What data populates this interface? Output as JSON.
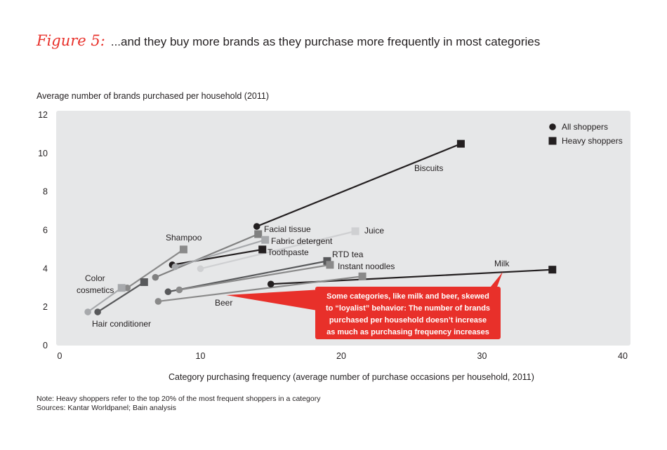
{
  "figure": {
    "label": "Figure 5:",
    "title": "...and they buy more brands as they purchase more frequently in most categories"
  },
  "notes": {
    "note": "Note: Heavy shoppers refer to the top 20% of the most frequent shoppers in a category",
    "sources": "Sources: Kantar Worldpanel; Bain analysis"
  },
  "chart_data": {
    "type": "scatter",
    "ylabel": "Average number of brands purchased per household (2011)",
    "xlabel": "Category purchasing frequency (average number of purchase occasions per household, 2011)",
    "xlim": [
      0,
      40
    ],
    "ylim": [
      0,
      12
    ],
    "x_ticks": [
      0,
      10,
      20,
      30,
      40
    ],
    "y_ticks": [
      0,
      2,
      4,
      6,
      8,
      10,
      12
    ],
    "grid": false,
    "legend": {
      "placement": "top-right",
      "entries": [
        {
          "label": "All shoppers",
          "marker": "circle"
        },
        {
          "label": "Heavy shoppers",
          "marker": "square"
        }
      ]
    },
    "categories": [
      {
        "name": "Biscuits",
        "all": [
          14.0,
          6.2
        ],
        "heavy": [
          28.5,
          10.5
        ],
        "color": "#231f20"
      },
      {
        "name": "Milk",
        "all": [
          15.0,
          3.2
        ],
        "heavy": [
          35.0,
          3.95
        ],
        "color": "#231f20"
      },
      {
        "name": "Toothpaste",
        "all": [
          8.0,
          4.2
        ],
        "heavy": [
          14.4,
          5.0
        ],
        "color": "#231f20"
      },
      {
        "name": "RTD tea",
        "all": [
          7.7,
          2.8
        ],
        "heavy": [
          19.0,
          4.4
        ],
        "color": "#58595b"
      },
      {
        "name": "Facial tissue",
        "all": [
          6.8,
          3.55
        ],
        "heavy": [
          14.1,
          5.8
        ],
        "color": "#808080"
      },
      {
        "name": "Instant noodles",
        "all": [
          8.5,
          2.9
        ],
        "heavy": [
          19.2,
          4.2
        ],
        "color": "#8a8a8a"
      },
      {
        "name": "Beer",
        "all": [
          7.0,
          2.3
        ],
        "heavy": [
          21.5,
          3.6
        ],
        "color": "#8a8a8a"
      },
      {
        "name": "Hair conditioner",
        "all": [
          2.7,
          1.75
        ],
        "heavy": [
          6.0,
          3.3
        ],
        "color": "#58595b"
      },
      {
        "name": "Shampoo",
        "all": [
          4.8,
          3.0
        ],
        "heavy": [
          8.8,
          5.0
        ],
        "color": "#8a8a8a"
      },
      {
        "name": "Fabric detergent",
        "all": [
          8.2,
          4.1
        ],
        "heavy": [
          14.6,
          5.5
        ],
        "color": "#a7a9ac"
      },
      {
        "name": "Color cosmetics",
        "all": [
          2.0,
          1.75
        ],
        "heavy": [
          4.4,
          3.0
        ],
        "color": "#a7a9ac"
      },
      {
        "name": "Juice",
        "all": [
          10.0,
          4.0
        ],
        "heavy": [
          21.0,
          5.95
        ],
        "color": "#cfd0d2"
      }
    ],
    "labels": [
      {
        "text": "Biscuits"
      },
      {
        "text": "Milk"
      },
      {
        "text": "Toothpaste"
      },
      {
        "text": "RTD tea"
      },
      {
        "text": "Facial tissue"
      },
      {
        "text": "Instant noodles"
      },
      {
        "text": "Beer"
      },
      {
        "text": "Hair conditioner"
      },
      {
        "text": "Shampoo"
      },
      {
        "text": "Fabric detergent"
      },
      {
        "text": "Color"
      },
      {
        "text": "cosmetics"
      },
      {
        "text": "Juice"
      }
    ],
    "annotation": {
      "lines": [
        "Some categories, like milk and beer, skewed",
        "to “loyalist” behavior: The number of brands",
        "purchased per household doesn’t increase",
        "as much as purchasing frequency increases"
      ],
      "color": "#e8302a"
    },
    "plot_background": "#e6e7e8"
  }
}
